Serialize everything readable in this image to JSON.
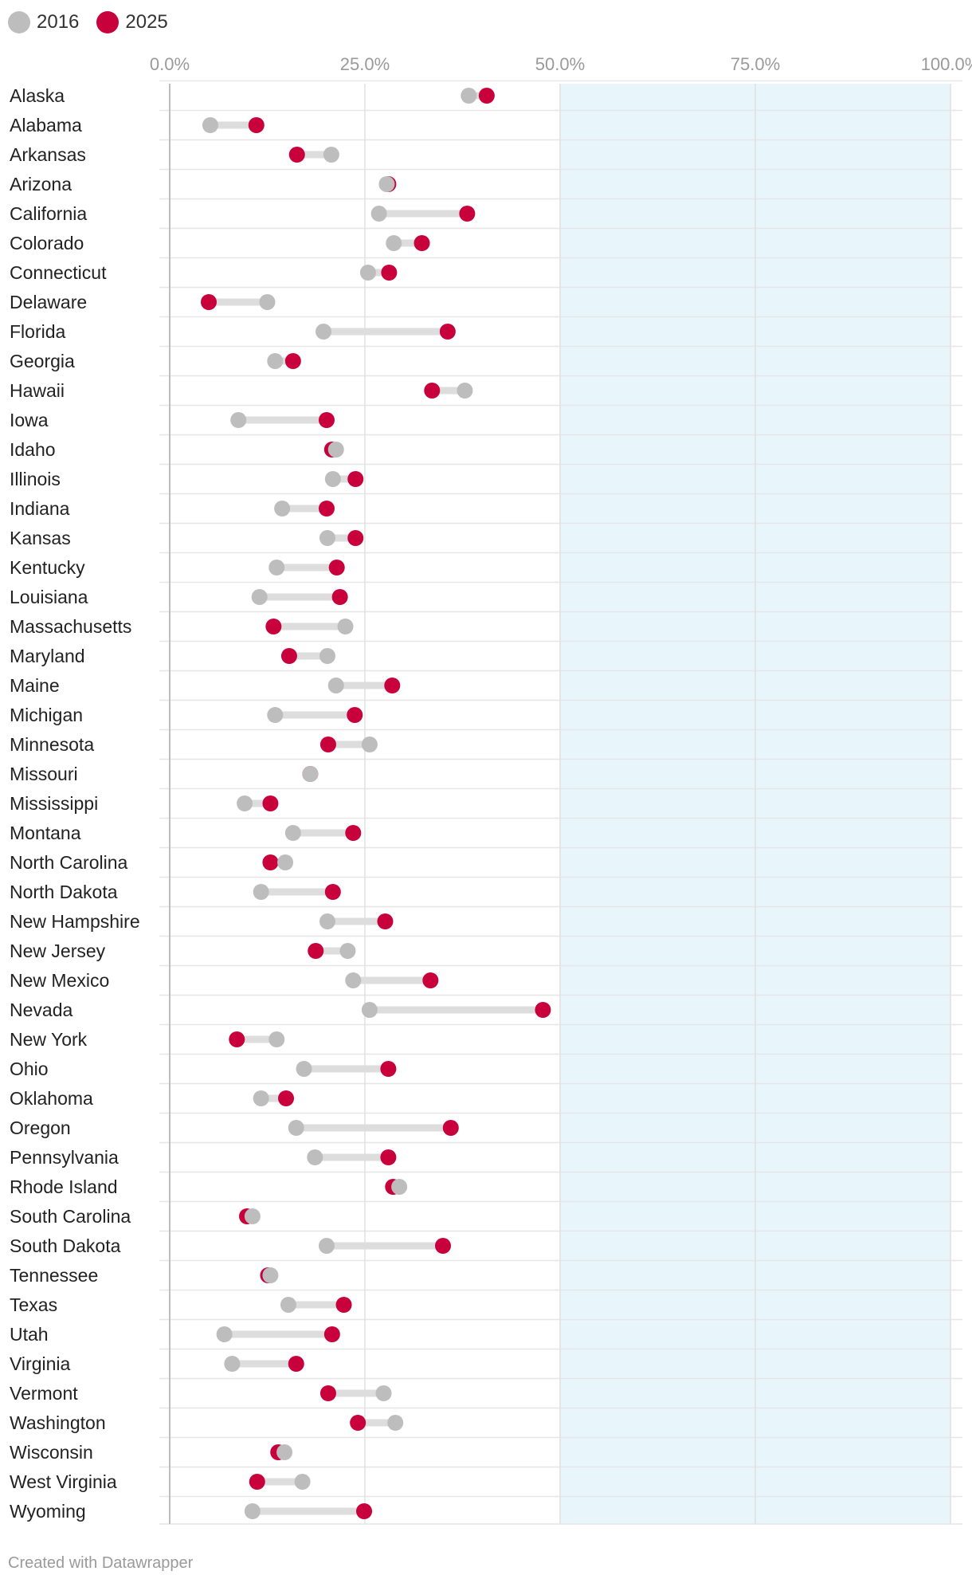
{
  "chart_data": {
    "type": "dot-range",
    "series": [
      {
        "name": "2016",
        "color": "#bdbdbd"
      },
      {
        "name": "2025",
        "color": "#c8003c"
      }
    ],
    "x_ticks": [
      "0.0%",
      "25.0%",
      "50.0%",
      "75.0%",
      "100.0%"
    ],
    "xlim": [
      0,
      100
    ],
    "highlight_range": [
      50,
      100
    ],
    "highlight_color": "#e8f5fb",
    "grid": true,
    "legend_position": "top-left",
    "rows": [
      {
        "label": "Alaska",
        "v2016": 38.3,
        "v2025": 40.6
      },
      {
        "label": "Alabama",
        "v2016": 5.2,
        "v2025": 11.1
      },
      {
        "label": "Arkansas",
        "v2016": 20.7,
        "v2025": 16.3
      },
      {
        "label": "Arizona",
        "v2016": 27.8,
        "v2025": 28.0
      },
      {
        "label": "California",
        "v2016": 26.8,
        "v2025": 38.1
      },
      {
        "label": "Colorado",
        "v2016": 28.7,
        "v2025": 32.3
      },
      {
        "label": "Connecticut",
        "v2016": 25.4,
        "v2025": 28.1
      },
      {
        "label": "Delaware",
        "v2016": 12.5,
        "v2025": 5.0
      },
      {
        "label": "Florida",
        "v2016": 19.7,
        "v2025": 35.6
      },
      {
        "label": "Georgia",
        "v2016": 13.5,
        "v2025": 15.8
      },
      {
        "label": "Hawaii",
        "v2016": 37.8,
        "v2025": 33.6
      },
      {
        "label": "Iowa",
        "v2016": 8.8,
        "v2025": 20.1
      },
      {
        "label": "Idaho",
        "v2016": 21.3,
        "v2025": 20.8
      },
      {
        "label": "Illinois",
        "v2016": 20.9,
        "v2025": 23.8
      },
      {
        "label": "Indiana",
        "v2016": 14.4,
        "v2025": 20.1
      },
      {
        "label": "Kansas",
        "v2016": 20.2,
        "v2025": 23.8
      },
      {
        "label": "Kentucky",
        "v2016": 13.7,
        "v2025": 21.4
      },
      {
        "label": "Louisiana",
        "v2016": 11.5,
        "v2025": 21.8
      },
      {
        "label": "Massachusetts",
        "v2016": 22.5,
        "v2025": 13.3
      },
      {
        "label": "Maryland",
        "v2016": 20.2,
        "v2025": 15.3
      },
      {
        "label": "Maine",
        "v2016": 21.3,
        "v2025": 28.5
      },
      {
        "label": "Michigan",
        "v2016": 13.5,
        "v2025": 23.7
      },
      {
        "label": "Minnesota",
        "v2016": 25.6,
        "v2025": 20.3
      },
      {
        "label": "Missouri",
        "v2016": 18.0,
        "v2025": 18.0
      },
      {
        "label": "Mississippi",
        "v2016": 9.6,
        "v2025": 12.9
      },
      {
        "label": "Montana",
        "v2016": 15.8,
        "v2025": 23.5
      },
      {
        "label": "North Carolina",
        "v2016": 14.8,
        "v2025": 12.9
      },
      {
        "label": "North Dakota",
        "v2016": 11.7,
        "v2025": 20.9
      },
      {
        "label": "New Hampshire",
        "v2016": 20.2,
        "v2025": 27.6
      },
      {
        "label": "New Jersey",
        "v2016": 22.8,
        "v2025": 18.7
      },
      {
        "label": "New Mexico",
        "v2016": 23.5,
        "v2025": 33.4
      },
      {
        "label": "Nevada",
        "v2016": 25.6,
        "v2025": 47.8
      },
      {
        "label": "New York",
        "v2016": 13.7,
        "v2025": 8.6
      },
      {
        "label": "Ohio",
        "v2016": 17.2,
        "v2025": 28.0
      },
      {
        "label": "Oklahoma",
        "v2016": 11.7,
        "v2025": 14.9
      },
      {
        "label": "Oregon",
        "v2016": 16.2,
        "v2025": 36.0
      },
      {
        "label": "Pennsylvania",
        "v2016": 18.6,
        "v2025": 28.0
      },
      {
        "label": "Rhode Island",
        "v2016": 29.4,
        "v2025": 28.6
      },
      {
        "label": "South Carolina",
        "v2016": 10.6,
        "v2025": 9.9
      },
      {
        "label": "South Dakota",
        "v2016": 20.1,
        "v2025": 35.0
      },
      {
        "label": "Tennessee",
        "v2016": 12.9,
        "v2025": 12.6
      },
      {
        "label": "Texas",
        "v2016": 15.2,
        "v2025": 22.3
      },
      {
        "label": "Utah",
        "v2016": 7.0,
        "v2025": 20.8
      },
      {
        "label": "Virginia",
        "v2016": 8.0,
        "v2025": 16.2
      },
      {
        "label": "Vermont",
        "v2016": 27.4,
        "v2025": 20.3
      },
      {
        "label": "Washington",
        "v2016": 28.9,
        "v2025": 24.1
      },
      {
        "label": "Wisconsin",
        "v2016": 14.7,
        "v2025": 13.9
      },
      {
        "label": "West Virginia",
        "v2016": 17.0,
        "v2025": 11.2
      },
      {
        "label": "Wyoming",
        "v2016": 10.6,
        "v2025": 24.9
      }
    ]
  },
  "footer": {
    "credit": "Created with Datawrapper"
  }
}
